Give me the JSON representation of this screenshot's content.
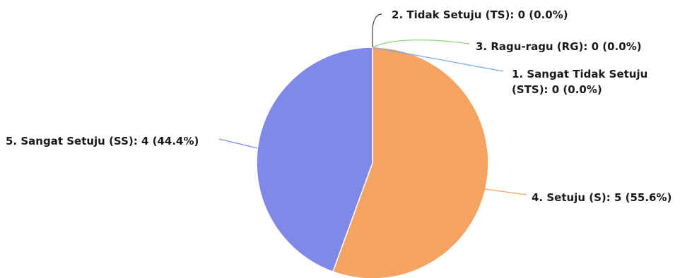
{
  "chart_data": {
    "type": "pie",
    "title": "",
    "slices": [
      {
        "label": "1. Sangat Tidak Setuju (STS): 0 (0.0%)",
        "label_lines": [
          "1. Sangat Tidak Setuju",
          "(STS): 0 (0.0%)"
        ],
        "value": 0,
        "percent": 0.0,
        "color": "#7aa6e8"
      },
      {
        "label": "2. Tidak Setuju (TS): 0 (0.0%)",
        "label_lines": [
          "2. Tidak Setuju (TS): 0 (0.0%)"
        ],
        "value": 0,
        "percent": 0.0,
        "color": "#3a3a3a"
      },
      {
        "label": "3. Ragu-ragu (RG): 0 (0.0%)",
        "label_lines": [
          "3. Ragu-ragu (RG): 0 (0.0%)"
        ],
        "value": 0,
        "percent": 0.0,
        "color": "#8fd17e"
      },
      {
        "label": "4. Setuju (S): 5 (55.6%)",
        "label_lines": [
          "4. Setuju (S): 5 (55.6%)"
        ],
        "value": 5,
        "percent": 55.6,
        "color": "#f4a460"
      },
      {
        "label": "5. Sangat Setuju (SS): 4 (44.4%)",
        "label_lines": [
          "5. Sangat Setuju (SS): 4 (44.4%)"
        ],
        "value": 4,
        "percent": 44.4,
        "color": "#8088e8"
      }
    ]
  }
}
